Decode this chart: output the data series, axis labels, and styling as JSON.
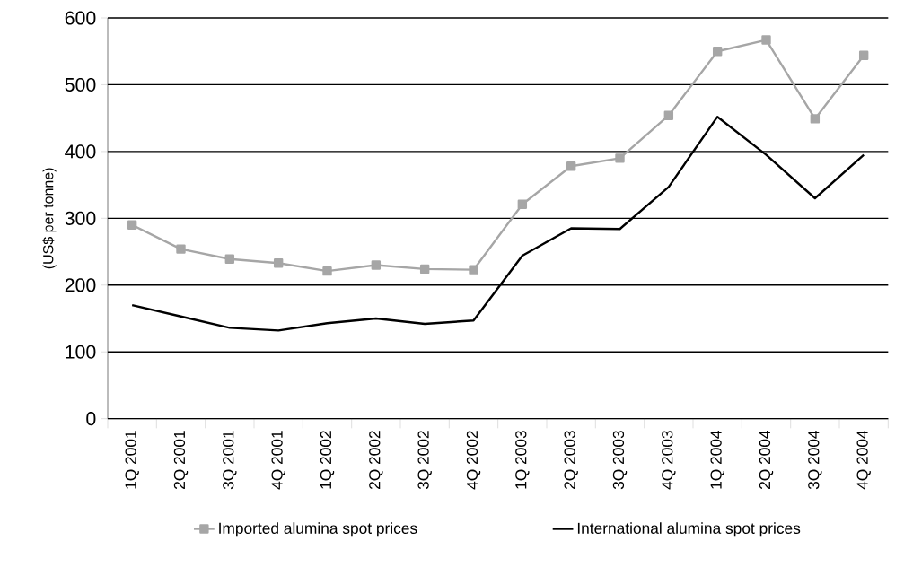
{
  "chart_data": {
    "type": "line",
    "ylabel": "(US$ per tonne)",
    "categories": [
      "1Q 2001",
      "2Q 2001",
      "3Q 2001",
      "4Q 2001",
      "1Q 2002",
      "2Q 2002",
      "3Q 2002",
      "4Q 2002",
      "1Q 2003",
      "2Q 2003",
      "3Q 2003",
      "4Q 2003",
      "1Q 2004",
      "2Q 2004",
      "3Q 2004",
      "4Q 2004"
    ],
    "series": [
      {
        "name": "Imported alumina spot prices",
        "color": "#a6a6a6",
        "marker": "square",
        "values": [
          290,
          254,
          239,
          233,
          221,
          230,
          224,
          223,
          321,
          378,
          390,
          454,
          550,
          567,
          449,
          544
        ]
      },
      {
        "name": "International alumina spot prices",
        "color": "#000000",
        "marker": "none",
        "values": [
          170,
          153,
          136,
          132,
          143,
          150,
          142,
          147,
          244,
          285,
          284,
          347,
          452,
          395,
          330,
          395
        ]
      }
    ],
    "ylim": [
      0,
      600
    ],
    "yticks": [
      0,
      100,
      200,
      300,
      400,
      500,
      600
    ],
    "grid": "y",
    "legend": "bottom",
    "line_style": "solid"
  }
}
